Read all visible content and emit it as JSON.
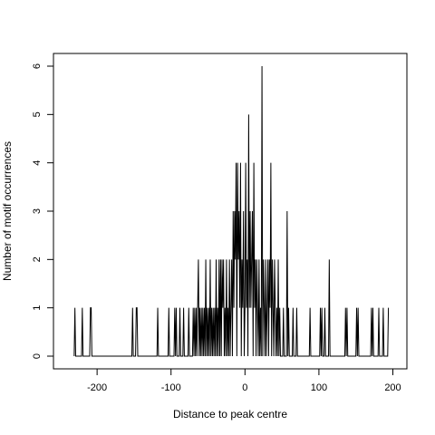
{
  "chart_data": {
    "type": "line",
    "title": "",
    "xlabel": "Distance to peak centre",
    "ylabel": "Number of motif occurrences",
    "xlim": [
      -240,
      200
    ],
    "ylim": [
      0,
      6
    ],
    "x_ticks": [
      -200,
      -100,
      0,
      100,
      200
    ],
    "x_tick_labels": [
      "-200",
      "-100",
      "0",
      "100",
      "200"
    ],
    "y_ticks": [
      0,
      1,
      2,
      3,
      4,
      5,
      6
    ],
    "y_tick_labels": [
      "0",
      "1",
      "2",
      "3",
      "4",
      "5",
      "6"
    ],
    "grid": false,
    "line_color": "#000000",
    "series": [
      {
        "points": [
          [
            -231,
            0
          ],
          [
            -230,
            1
          ],
          [
            -229,
            0
          ],
          [
            -221,
            0
          ],
          [
            -220,
            1
          ],
          [
            -219,
            0
          ],
          [
            -210,
            0
          ],
          [
            -209,
            1
          ],
          [
            -208,
            1
          ],
          [
            -207,
            0
          ],
          [
            -153,
            0
          ],
          [
            -152,
            1
          ],
          [
            -151,
            0
          ],
          [
            -148,
            0
          ],
          [
            -147,
            1
          ],
          [
            -146,
            1
          ],
          [
            -145,
            0
          ],
          [
            -119,
            0
          ],
          [
            -118,
            1
          ],
          [
            -117,
            0
          ],
          [
            -104,
            0
          ],
          [
            -103,
            1
          ],
          [
            -102,
            0
          ],
          [
            -96,
            0
          ],
          [
            -95,
            1
          ],
          [
            -94,
            0
          ],
          [
            -93,
            1
          ],
          [
            -92,
            0
          ],
          [
            -89,
            0
          ],
          [
            -88,
            1
          ],
          [
            -87,
            0
          ],
          [
            -84,
            0
          ],
          [
            -83,
            1
          ],
          [
            -82,
            0
          ],
          [
            -77,
            0
          ],
          [
            -76,
            1
          ],
          [
            -75,
            0
          ],
          [
            -71,
            0
          ],
          [
            -70,
            1
          ],
          [
            -69,
            0
          ],
          [
            -68,
            1
          ],
          [
            -67,
            0
          ],
          [
            -66,
            1
          ],
          [
            -65,
            0
          ],
          [
            -64,
            1
          ],
          [
            -63,
            2
          ],
          [
            -62,
            0
          ],
          [
            -61,
            1
          ],
          [
            -60,
            0
          ],
          [
            -59,
            1
          ],
          [
            -58,
            0
          ],
          [
            -57,
            1
          ],
          [
            -56,
            0
          ],
          [
            -55,
            1
          ],
          [
            -54,
            0
          ],
          [
            -53,
            2
          ],
          [
            -52,
            0
          ],
          [
            -51,
            1
          ],
          [
            -50,
            0
          ],
          [
            -49,
            1
          ],
          [
            -48,
            0
          ],
          [
            -47,
            2
          ],
          [
            -46,
            0
          ],
          [
            -45,
            1
          ],
          [
            -44,
            0
          ],
          [
            -43,
            1
          ],
          [
            -42,
            0
          ],
          [
            -41,
            1
          ],
          [
            -40,
            0
          ],
          [
            -39,
            2
          ],
          [
            -38,
            0
          ],
          [
            -37,
            1
          ],
          [
            -36,
            0
          ],
          [
            -35,
            2
          ],
          [
            -34,
            0
          ],
          [
            -33,
            2
          ],
          [
            -32,
            0
          ],
          [
            -31,
            2
          ],
          [
            -30,
            1
          ],
          [
            -29,
            2
          ],
          [
            -28,
            0
          ],
          [
            -27,
            1
          ],
          [
            -26,
            0
          ],
          [
            -25,
            2
          ],
          [
            -24,
            0
          ],
          [
            -23,
            1
          ],
          [
            -22,
            0
          ],
          [
            -21,
            2
          ],
          [
            -20,
            0
          ],
          [
            -19,
            1
          ],
          [
            -18,
            2
          ],
          [
            -17,
            0
          ],
          [
            -16,
            3
          ],
          [
            -15,
            1
          ],
          [
            -14,
            3
          ],
          [
            -13,
            2
          ],
          [
            -12,
            4
          ],
          [
            -11,
            0
          ],
          [
            -10,
            4
          ],
          [
            -9,
            2
          ],
          [
            -8,
            3
          ],
          [
            -7,
            1
          ],
          [
            -6,
            4
          ],
          [
            -5,
            0
          ],
          [
            -4,
            2
          ],
          [
            -3,
            1
          ],
          [
            -2,
            3
          ],
          [
            -1,
            0
          ],
          [
            0,
            1
          ],
          [
            1,
            4
          ],
          [
            2,
            1
          ],
          [
            3,
            2
          ],
          [
            4,
            0
          ],
          [
            5,
            5
          ],
          [
            6,
            1
          ],
          [
            7,
            3
          ],
          [
            8,
            1
          ],
          [
            9,
            2
          ],
          [
            10,
            3
          ],
          [
            11,
            0
          ],
          [
            12,
            4
          ],
          [
            13,
            1
          ],
          [
            14,
            2
          ],
          [
            15,
            0
          ],
          [
            16,
            2
          ],
          [
            17,
            1
          ],
          [
            18,
            0
          ],
          [
            19,
            2
          ],
          [
            20,
            0
          ],
          [
            21,
            1
          ],
          [
            22,
            0
          ],
          [
            23,
            6
          ],
          [
            24,
            0
          ],
          [
            25,
            2
          ],
          [
            26,
            1
          ],
          [
            27,
            0
          ],
          [
            28,
            2
          ],
          [
            29,
            0
          ],
          [
            30,
            1
          ],
          [
            31,
            2
          ],
          [
            32,
            0
          ],
          [
            33,
            2
          ],
          [
            34,
            1
          ],
          [
            35,
            4
          ],
          [
            36,
            0
          ],
          [
            37,
            2
          ],
          [
            38,
            1
          ],
          [
            39,
            0
          ],
          [
            40,
            2
          ],
          [
            41,
            1
          ],
          [
            42,
            0
          ],
          [
            43,
            1
          ],
          [
            44,
            0
          ],
          [
            45,
            2
          ],
          [
            46,
            0
          ],
          [
            47,
            1
          ],
          [
            48,
            0
          ],
          [
            51,
            0
          ],
          [
            52,
            1
          ],
          [
            53,
            0
          ],
          [
            56,
            0
          ],
          [
            57,
            3
          ],
          [
            58,
            0
          ],
          [
            59,
            1
          ],
          [
            60,
            0
          ],
          [
            64,
            0
          ],
          [
            65,
            1
          ],
          [
            66,
            0
          ],
          [
            69,
            0
          ],
          [
            70,
            1
          ],
          [
            71,
            0
          ],
          [
            87,
            0
          ],
          [
            88,
            1
          ],
          [
            89,
            0
          ],
          [
            101,
            0
          ],
          [
            102,
            1
          ],
          [
            103,
            0
          ],
          [
            104,
            1
          ],
          [
            105,
            0
          ],
          [
            107,
            0
          ],
          [
            108,
            1
          ],
          [
            109,
            0
          ],
          [
            113,
            0
          ],
          [
            114,
            2
          ],
          [
            115,
            0
          ],
          [
            135,
            0
          ],
          [
            136,
            1
          ],
          [
            137,
            0
          ],
          [
            138,
            1
          ],
          [
            139,
            0
          ],
          [
            150,
            0
          ],
          [
            151,
            1
          ],
          [
            152,
            0
          ],
          [
            153,
            1
          ],
          [
            154,
            0
          ],
          [
            170,
            0
          ],
          [
            171,
            1
          ],
          [
            172,
            0
          ],
          [
            173,
            1
          ],
          [
            174,
            0
          ],
          [
            180,
            0
          ],
          [
            181,
            1
          ],
          [
            182,
            0
          ],
          [
            186,
            0
          ],
          [
            187,
            1
          ],
          [
            188,
            0
          ],
          [
            193,
            0
          ],
          [
            194,
            1
          ]
        ]
      }
    ]
  }
}
